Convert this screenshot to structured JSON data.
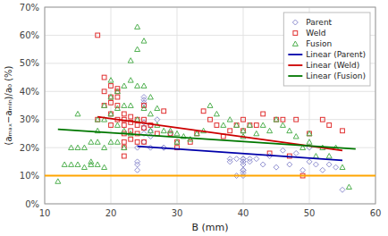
{
  "chart_data": {
    "type": "scatter",
    "x_label": "B (mm)",
    "y_label": "(aₘₐₓ−aₘᵢₙ)/a₀ (%)",
    "xlim": [
      10,
      60
    ],
    "ylim": [
      0.0,
      0.7
    ],
    "xticks": [
      10,
      20,
      30,
      40,
      50,
      60
    ],
    "yticks": [
      {
        "value": 0.0,
        "label": "0%"
      },
      {
        "value": 0.1,
        "label": "10%"
      },
      {
        "value": 0.2,
        "label": "20%"
      },
      {
        "value": 0.3,
        "label": "30%"
      },
      {
        "value": 0.4,
        "label": "40%"
      },
      {
        "value": 0.5,
        "label": "50%"
      },
      {
        "value": 0.6,
        "label": "60%"
      },
      {
        "value": 0.7,
        "label": "70%"
      }
    ],
    "grid": true,
    "legend": "upper right",
    "series": [
      {
        "name": "Parent",
        "type": "scatter",
        "marker": "diamond",
        "color": "#9090d0",
        "x": [
          24,
          24,
          24,
          24,
          25,
          25,
          25,
          25,
          25,
          25,
          25,
          25,
          26,
          26,
          26,
          26,
          27,
          28,
          28,
          29,
          38,
          38,
          39,
          39,
          40,
          40,
          40,
          40,
          40,
          40,
          40,
          40,
          40,
          41,
          41,
          42,
          43,
          44,
          45,
          46,
          47,
          48,
          49,
          50,
          50,
          51,
          52,
          53,
          54,
          55
        ],
        "values": [
          0.2,
          0.15,
          0.14,
          0.12,
          0.35,
          0.36,
          0.37,
          0.38,
          0.29,
          0.27,
          0.25,
          0.22,
          0.28,
          0.26,
          0.24,
          0.2,
          0.3,
          0.2,
          0.2,
          0.25,
          0.15,
          0.16,
          0.1,
          0.16,
          0.16,
          0.15,
          0.14,
          0.15,
          0.16,
          0.12,
          0.1,
          0.11,
          0.12,
          0.15,
          0.16,
          0.16,
          0.14,
          0.17,
          0.13,
          0.19,
          0.14,
          0.18,
          0.12,
          0.2,
          0.15,
          0.14,
          0.12,
          0.14,
          0.13,
          0.05
        ]
      },
      {
        "name": "Weld",
        "type": "scatter",
        "marker": "square",
        "color": "#e03030",
        "x": [
          18,
          18,
          19,
          19,
          19,
          20,
          20,
          20,
          20,
          20,
          21,
          21,
          21,
          21,
          21,
          22,
          22,
          22,
          22,
          22,
          22,
          22,
          23,
          23,
          23,
          23,
          24,
          24,
          24,
          24,
          25,
          25,
          25,
          25,
          26,
          27,
          28,
          29,
          30,
          30,
          32,
          33,
          34,
          35,
          36,
          37,
          38,
          39,
          40,
          40,
          41,
          42,
          43,
          44,
          45,
          46,
          47,
          48,
          49,
          50,
          52,
          53,
          55
        ],
        "values": [
          0.3,
          0.6,
          0.45,
          0.4,
          0.35,
          0.42,
          0.38,
          0.36,
          0.32,
          0.28,
          0.41,
          0.4,
          0.38,
          0.35,
          0.3,
          0.32,
          0.3,
          0.28,
          0.25,
          0.22,
          0.2,
          0.17,
          0.31,
          0.29,
          0.26,
          0.23,
          0.3,
          0.28,
          0.25,
          0.22,
          0.35,
          0.3,
          0.27,
          0.22,
          0.28,
          0.25,
          0.33,
          0.25,
          0.22,
          0.2,
          0.22,
          0.25,
          0.33,
          0.3,
          0.28,
          0.24,
          0.26,
          0.28,
          0.3,
          0.26,
          0.28,
          0.28,
          0.32,
          0.18,
          0.3,
          0.3,
          0.17,
          0.3,
          0.1,
          0.25,
          0.3,
          0.28,
          0.26
        ]
      },
      {
        "name": "Fusion",
        "type": "scatter",
        "marker": "triangle",
        "color": "#50b050",
        "x": [
          12,
          13,
          14,
          14,
          15,
          15,
          15,
          16,
          16,
          17,
          17,
          17,
          18,
          18,
          18,
          18,
          19,
          19,
          19,
          19,
          20,
          20,
          20,
          20,
          21,
          21,
          21,
          21,
          22,
          22,
          22,
          22,
          23,
          23,
          23,
          23,
          24,
          24,
          24,
          24,
          25,
          25,
          25,
          26,
          26,
          26,
          27,
          27,
          28,
          29,
          30,
          30,
          31,
          32,
          33,
          34,
          35,
          36,
          37,
          38,
          39,
          40,
          40,
          41,
          42,
          43,
          44,
          45,
          46,
          47,
          48,
          49,
          50,
          50,
          51,
          52,
          53,
          54,
          55,
          56
        ],
        "values": [
          0.08,
          0.14,
          0.14,
          0.2,
          0.14,
          0.2,
          0.32,
          0.2,
          0.13,
          0.15,
          0.22,
          0.14,
          0.14,
          0.22,
          0.3,
          0.26,
          0.3,
          0.35,
          0.2,
          0.13,
          0.44,
          0.38,
          0.32,
          0.22,
          0.4,
          0.34,
          0.28,
          0.22,
          0.42,
          0.35,
          0.26,
          0.2,
          0.51,
          0.44,
          0.35,
          0.25,
          0.63,
          0.55,
          0.42,
          0.3,
          0.58,
          0.42,
          0.34,
          0.38,
          0.32,
          0.26,
          0.34,
          0.28,
          0.26,
          0.26,
          0.25,
          0.22,
          0.24,
          0.23,
          0.25,
          0.26,
          0.35,
          0.32,
          0.28,
          0.3,
          0.28,
          0.26,
          0.24,
          0.28,
          0.25,
          0.28,
          0.26,
          0.3,
          0.28,
          0.26,
          0.24,
          0.2,
          0.25,
          0.22,
          0.17,
          0.2,
          0.17,
          0.2,
          0.13,
          0.06
        ]
      },
      {
        "name": "Linear (Parent)",
        "type": "line",
        "color": "#0000aa",
        "x": [
          24,
          55
        ],
        "values": [
          0.205,
          0.155
        ]
      },
      {
        "name": "Linear (Weld)",
        "type": "line",
        "color": "#cc0000",
        "x": [
          18,
          55
        ],
        "values": [
          0.31,
          0.19
        ]
      },
      {
        "name": "Linear (Fusion)",
        "type": "line",
        "color": "#007700",
        "x": [
          12,
          57
        ],
        "values": [
          0.265,
          0.195
        ]
      },
      {
        "type": "hline",
        "color": "#FFA500",
        "values": [
          0.1
        ]
      }
    ]
  }
}
